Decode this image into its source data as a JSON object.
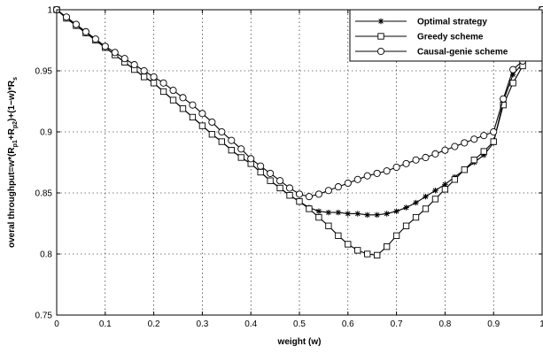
{
  "chart_data": {
    "type": "line",
    "title": "",
    "xlabel": "weight (w)",
    "ylabel_parts": [
      "overal throughput=w*(R",
      "p1",
      "+R",
      "p2",
      ")+(1−w)*R",
      "s"
    ],
    "xlim": [
      0,
      1
    ],
    "ylim": [
      0.75,
      1
    ],
    "x_ticks": [
      "0",
      "0.1",
      "0.2",
      "0.3",
      "0.4",
      "0.5",
      "0.6",
      "0.7",
      "0.8",
      "0.9",
      "1"
    ],
    "y_ticks": [
      "0.75",
      "0.8",
      "0.85",
      "0.9",
      "0.95",
      "1"
    ],
    "grid": true,
    "legend_position": "top-right",
    "x": [
      0,
      0.02,
      0.04,
      0.06,
      0.08,
      0.1,
      0.12,
      0.14,
      0.16,
      0.18,
      0.2,
      0.22,
      0.24,
      0.26,
      0.28,
      0.3,
      0.32,
      0.34,
      0.36,
      0.38,
      0.4,
      0.42,
      0.44,
      0.46,
      0.48,
      0.5,
      0.52,
      0.54,
      0.56,
      0.58,
      0.6,
      0.62,
      0.64,
      0.66,
      0.68,
      0.7,
      0.72,
      0.74,
      0.76,
      0.78,
      0.8,
      0.82,
      0.84,
      0.86,
      0.88,
      0.9,
      0.92,
      0.94,
      0.96,
      0.98,
      1
    ],
    "series": [
      {
        "name": "Optimal strategy",
        "marker": "asterisk",
        "values": [
          1,
          0.993,
          0.987,
          0.981,
          0.975,
          0.969,
          0.963,
          0.957,
          0.951,
          0.945,
          0.94,
          0.933,
          0.926,
          0.919,
          0.912,
          0.905,
          0.898,
          0.892,
          0.885,
          0.879,
          0.874,
          0.867,
          0.86,
          0.854,
          0.848,
          0.843,
          0.838,
          0.835,
          0.834,
          0.834,
          0.833,
          0.833,
          0.832,
          0.832,
          0.833,
          0.835,
          0.838,
          0.842,
          0.847,
          0.852,
          0.857,
          0.863,
          0.869,
          0.875,
          0.881,
          0.891,
          0.925,
          0.947,
          0.956,
          0.978,
          1
        ]
      },
      {
        "name": "Greedy scheme",
        "marker": "square",
        "values": [
          1,
          0.993,
          0.987,
          0.981,
          0.975,
          0.969,
          0.963,
          0.957,
          0.951,
          0.945,
          0.94,
          0.933,
          0.926,
          0.919,
          0.912,
          0.905,
          0.898,
          0.892,
          0.885,
          0.879,
          0.874,
          0.867,
          0.86,
          0.854,
          0.848,
          0.843,
          0.837,
          0.83,
          0.823,
          0.815,
          0.808,
          0.803,
          0.8,
          0.799,
          0.806,
          0.815,
          0.823,
          0.83,
          0.837,
          0.845,
          0.853,
          0.861,
          0.869,
          0.877,
          0.884,
          0.892,
          0.922,
          0.94,
          0.954,
          0.976,
          1
        ]
      },
      {
        "name": "Causal-genie scheme",
        "marker": "circle",
        "values": [
          1,
          0.994,
          0.988,
          0.982,
          0.976,
          0.97,
          0.965,
          0.96,
          0.955,
          0.95,
          0.945,
          0.94,
          0.934,
          0.928,
          0.922,
          0.915,
          0.908,
          0.9,
          0.893,
          0.886,
          0.878,
          0.872,
          0.866,
          0.86,
          0.854,
          0.849,
          0.847,
          0.849,
          0.852,
          0.855,
          0.858,
          0.861,
          0.864,
          0.866,
          0.868,
          0.871,
          0.874,
          0.877,
          0.879,
          0.882,
          0.885,
          0.888,
          0.891,
          0.894,
          0.897,
          0.9,
          0.927,
          0.951,
          0.958,
          0.98,
          1
        ]
      }
    ]
  }
}
